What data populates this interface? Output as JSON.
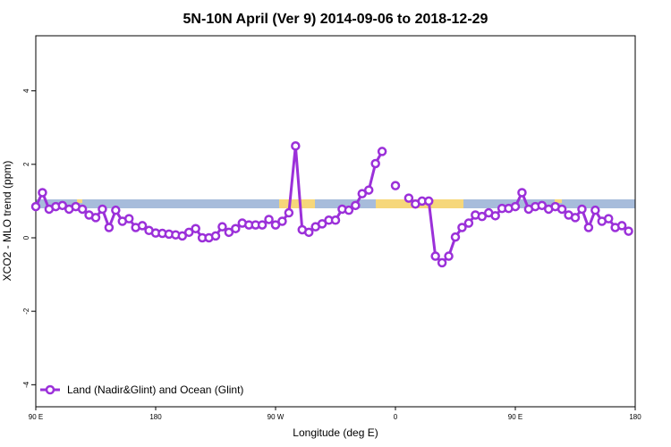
{
  "chart_data": {
    "type": "line",
    "title": "5N-10N April (Ver 9)   2014-09-06 to 2018-12-29",
    "xlabel": "Longitude (deg E)",
    "ylabel": "XCO2 - MLO trend (ppm)",
    "x": [
      90,
      95,
      100,
      105,
      110,
      115,
      120,
      125,
      130,
      135,
      140,
      145,
      150,
      155,
      160,
      165,
      170,
      175,
      180,
      185,
      190,
      195,
      200,
      205,
      210,
      215,
      220,
      225,
      230,
      235,
      240,
      245,
      250,
      255,
      260,
      265,
      270,
      275,
      280,
      285,
      290,
      295,
      300,
      305,
      310,
      315,
      320,
      325,
      330,
      335,
      340,
      345,
      350,
      355,
      360,
      365,
      370,
      375,
      380,
      385,
      390,
      395,
      400,
      405,
      410,
      415,
      420,
      425,
      430,
      435,
      440,
      445,
      450,
      455,
      460,
      465,
      470,
      475,
      480,
      485,
      490,
      495,
      500,
      505,
      510,
      515,
      520,
      525,
      530,
      535
    ],
    "series": [
      {
        "name": "Land (Nadir&Glint) and Ocean (Glint)",
        "color": "#9b30d9",
        "values": [
          0.85,
          1.23,
          0.78,
          0.85,
          0.88,
          0.78,
          0.85,
          0.78,
          0.62,
          0.55,
          0.78,
          0.28,
          0.75,
          0.45,
          0.52,
          0.28,
          0.33,
          0.2,
          0.13,
          0.12,
          0.1,
          0.08,
          0.05,
          0.15,
          0.25,
          0.0,
          0.0,
          0.05,
          0.3,
          0.15,
          0.25,
          0.4,
          0.35,
          0.35,
          0.35,
          0.5,
          0.35,
          0.45,
          0.68,
          2.5,
          0.22,
          0.15,
          0.3,
          0.38,
          0.48,
          0.48,
          0.78,
          0.75,
          0.88,
          1.2,
          1.3,
          2.02,
          2.35,
          null,
          1.42,
          null,
          1.08,
          0.92,
          1.0,
          1.0,
          -0.5,
          -0.68,
          -0.5,
          0.02,
          0.28,
          0.4,
          0.62,
          0.58,
          0.68,
          0.6,
          0.8,
          0.8,
          0.85,
          1.23,
          0.78,
          0.85,
          0.88,
          0.78,
          0.85,
          0.78,
          0.62,
          0.55,
          0.78,
          0.28,
          0.75,
          0.45,
          0.52,
          0.28,
          0.33,
          0.18
        ]
      }
    ],
    "xlim": [
      90,
      540
    ],
    "xticks": [
      {
        "value": 90,
        "label": "90 E"
      },
      {
        "value": 180,
        "label": "180"
      },
      {
        "value": 270,
        "label": "90 W"
      },
      {
        "value": 360,
        "label": "0"
      },
      {
        "value": 450,
        "label": "90 E"
      },
      {
        "value": 540,
        "label": "180"
      }
    ],
    "ylim": [
      -4.6,
      5.5
    ],
    "yticks": [
      4,
      2,
      0,
      -2,
      -4
    ],
    "legend": "bottom-left"
  }
}
